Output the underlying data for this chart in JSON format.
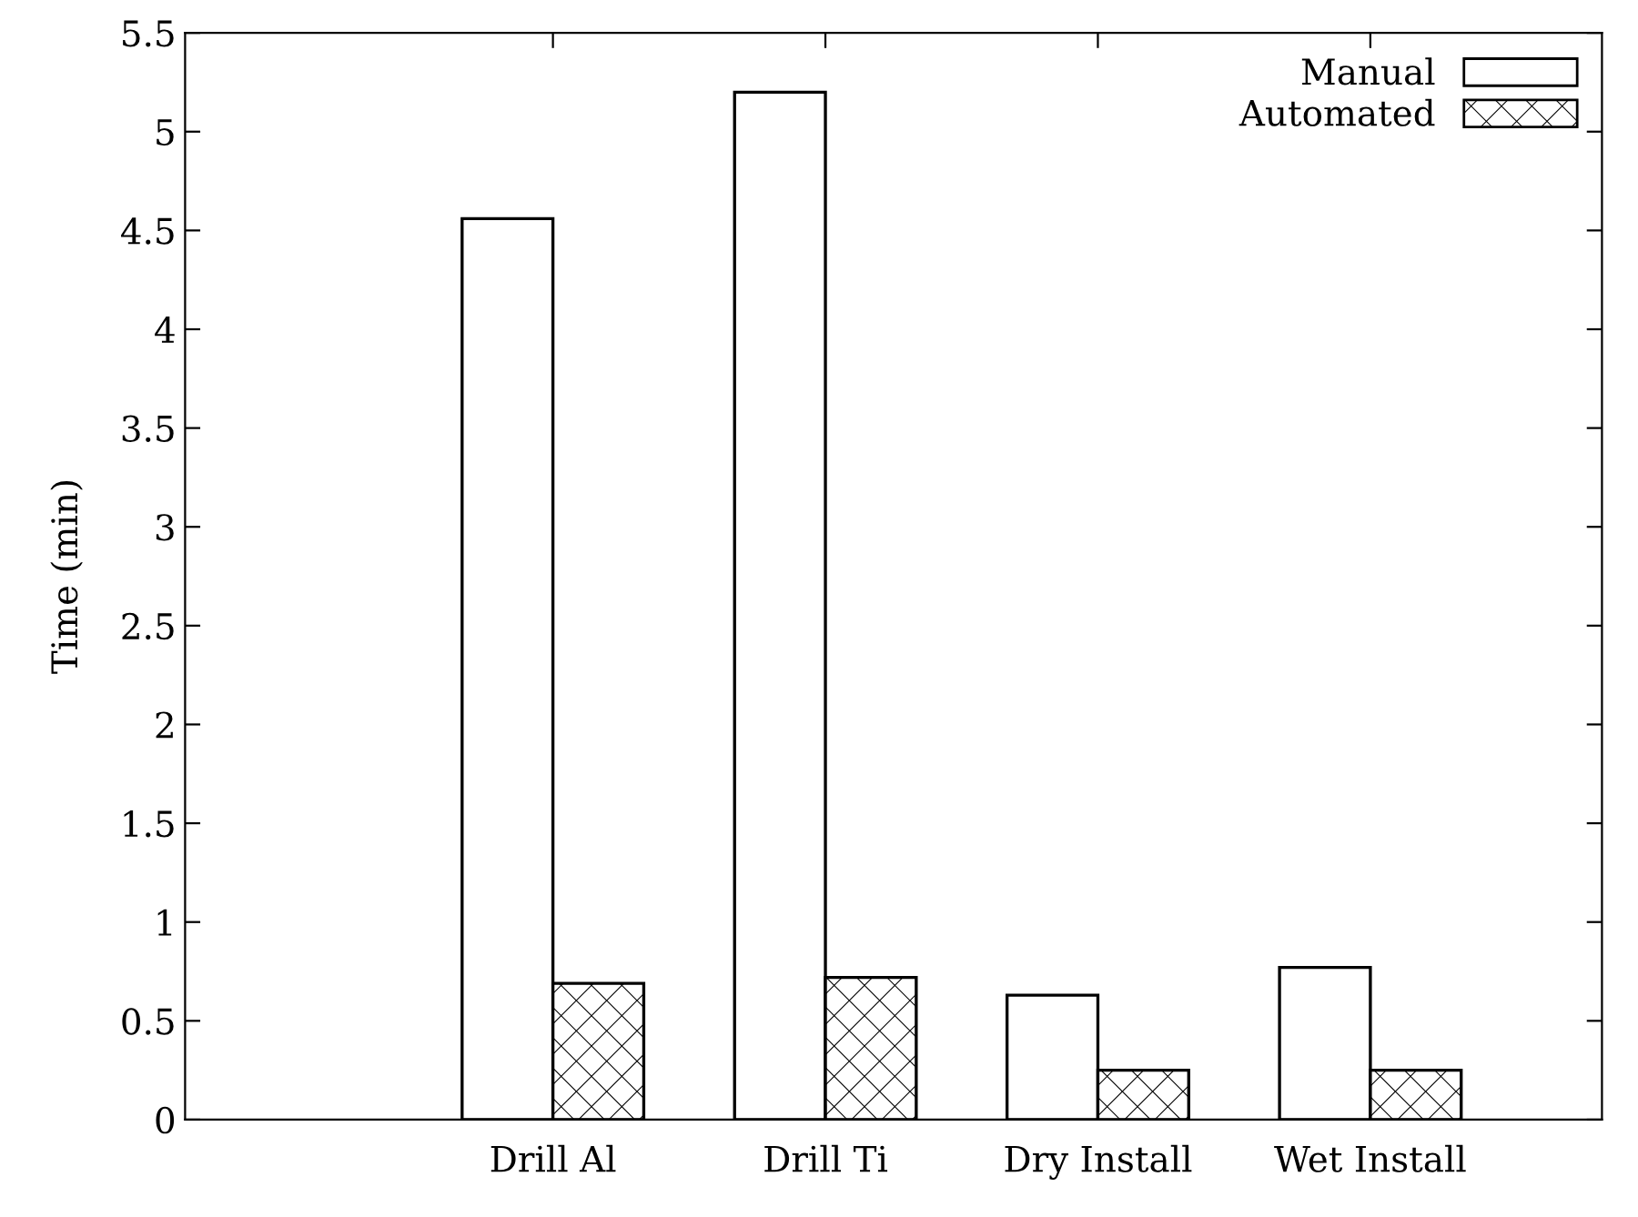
{
  "chart_data": {
    "type": "bar",
    "ylabel": "Time (min)",
    "categories": [
      "Drill Al",
      "Drill Ti",
      "Dry Install",
      "Wet Install"
    ],
    "series": [
      {
        "name": "Manual",
        "color": "#ffffff",
        "values": [
          4.56,
          5.2,
          0.63,
          0.77
        ]
      },
      {
        "name": "Automated",
        "color": "#000000",
        "values": [
          0.69,
          0.72,
          0.25,
          0.25
        ]
      }
    ],
    "ylim": [
      0,
      5.5
    ],
    "yticks": [
      0,
      0.5,
      1,
      1.5,
      2,
      2.5,
      3,
      3.5,
      4,
      4.5,
      5,
      5.5
    ],
    "grid": false,
    "legend": "top right"
  }
}
